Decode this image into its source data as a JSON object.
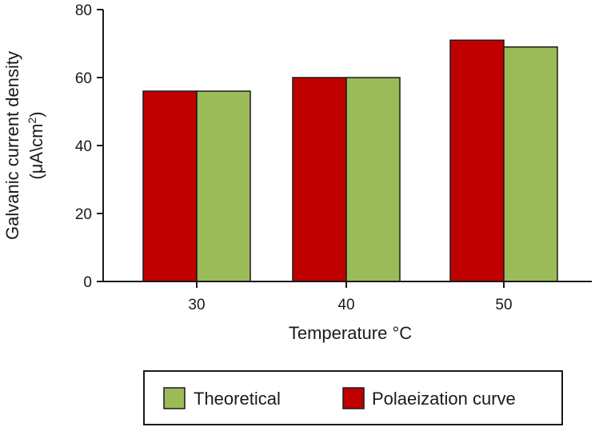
{
  "chart_data": {
    "type": "bar",
    "categories": [
      "30",
      "40",
      "50"
    ],
    "series": [
      {
        "name": "Polaeization curve",
        "values": [
          56,
          60,
          71
        ],
        "color": "#c00000"
      },
      {
        "name": "Theoretical",
        "values": [
          56,
          60,
          69
        ],
        "color": "#9bbb59"
      }
    ],
    "xlabel": "Temperature °C",
    "ylabel_line1": "Galvanic current density",
    "ylabel_line2_prefix": "(μA\\cm",
    "ylabel_line2_sup": "2",
    "ylabel_line2_suffix": ")",
    "ylim": [
      0,
      80
    ],
    "yticks": [
      "0",
      "20",
      "40",
      "60",
      "80"
    ],
    "grid": false,
    "legend_position": "bottom",
    "legend_items": [
      {
        "label": "Theoretical",
        "color": "#9bbb59"
      },
      {
        "label": "Polaeization curve",
        "color": "#c00000"
      }
    ]
  }
}
